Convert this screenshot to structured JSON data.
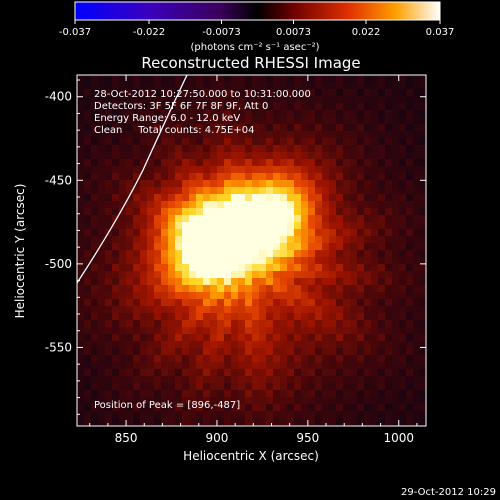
{
  "chart_data": {
    "type": "heatmap",
    "title": "Reconstructed RHESSI Image",
    "xlabel": "Heliocentric X (arcsec)",
    "ylabel": "Heliocentric Y (arcsec)",
    "xlim": [
      823,
      1015
    ],
    "ylim": [
      -597,
      -387
    ],
    "x_ticks": [
      850,
      900,
      950,
      1000
    ],
    "y_ticks": [
      -400,
      -450,
      -500,
      -550
    ],
    "colorbar": {
      "ticks": [
        "-0.037",
        "-0.022",
        "-0.0073",
        "0.0073",
        "0.022",
        "0.037"
      ],
      "range": [
        -0.037,
        0.037
      ],
      "unit_label": "(photons cm⁻² s⁻¹ asec⁻²)"
    },
    "annotations": [
      "28-Oct-2012 10:27:50.000 to 10:31:00.000",
      "Detectors: 3F 5F 6F 7F 8F 9F, Att 0",
      "Energy Range: 6.0 - 12.0 keV",
      "Clean     Total counts: 4.75E+04"
    ],
    "peak_label": "Position of Peak = [896,-487]",
    "peak": [
      896,
      -487
    ],
    "footer_timestamp": "29-Oct-2012 10:29",
    "colors": {
      "limb_line": "#ffffff",
      "background": "#000000"
    }
  }
}
